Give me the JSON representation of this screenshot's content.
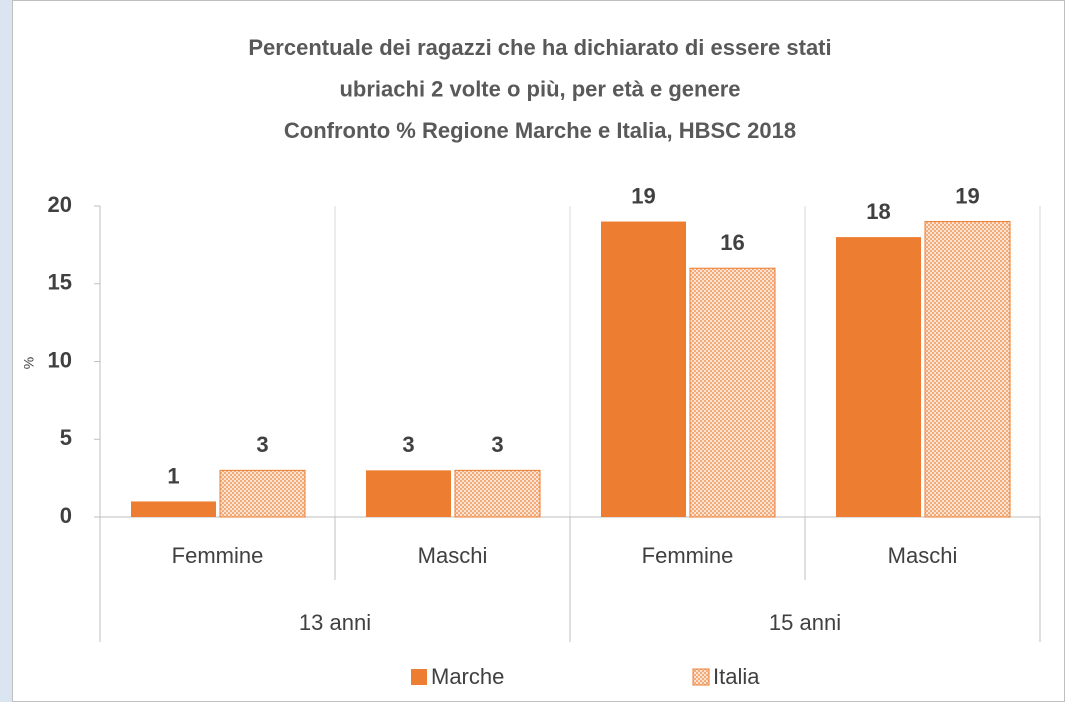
{
  "chart_data": {
    "type": "bar",
    "title": [
      "Percentuale dei ragazzi che ha dichiarato di essere stati",
      "ubriachi 2 volte o più, per età  e  genere",
      "Confronto %  Regione Marche e  Italia, HBSC 2018"
    ],
    "y_label": "%",
    "groups": [
      {
        "name": "13 anni",
        "categories": [
          "Femmine",
          "Maschi"
        ]
      },
      {
        "name": "15 anni",
        "categories": [
          "Femmine",
          "Maschi"
        ]
      }
    ],
    "series": [
      {
        "name": "Marche",
        "color": "#ed7d31",
        "fill_style": "solid",
        "values": [
          1,
          3,
          19,
          18
        ]
      },
      {
        "name": "Italia",
        "color": "#ed7d31",
        "fill_style": "pattern",
        "values": [
          3,
          3,
          16,
          19
        ]
      }
    ],
    "ylim": [
      0,
      20
    ],
    "yticks": [
      0,
      5,
      10,
      15,
      20
    ],
    "legend": "bottom"
  }
}
